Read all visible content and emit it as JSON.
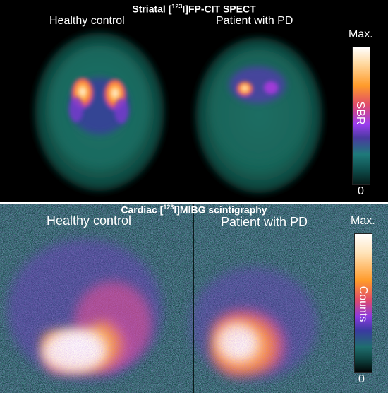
{
  "top": {
    "title_pre": "Striatal [",
    "title_sup": "123",
    "title_post": "I]FP-CIT SPECT",
    "label_left": "Healthy control",
    "label_right": "Patient with PD",
    "cbar_max": "Max.",
    "cbar_label": "SBR",
    "cbar_min": "0"
  },
  "bottom": {
    "title_pre": "Cardiac [",
    "title_sup": "123",
    "title_post": "I]MIBG scintigraphy",
    "label_left": "Healthy control",
    "label_right": "Patient with PD",
    "cbar_max": "Max.",
    "cbar_label": "Counts",
    "cbar_min": "0"
  },
  "colors": {
    "background": "#000000",
    "tissue": "#1a6b62",
    "hot": "#ff9b2a",
    "peak": "#ffffff",
    "mid": "#9b3df0"
  }
}
